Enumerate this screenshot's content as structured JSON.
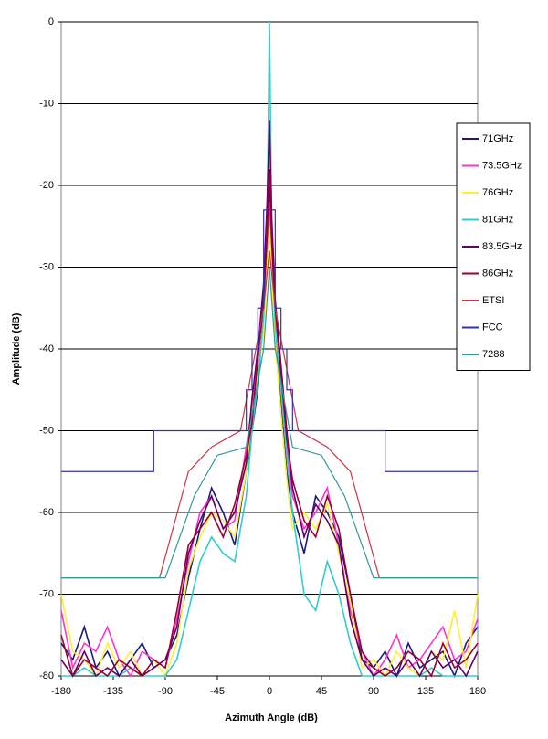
{
  "chart_data": {
    "type": "line",
    "x_label": "Azimuth Angle (dB)",
    "y_label": "Amplitude (dB)",
    "xlim": [
      -180,
      180
    ],
    "xticks": [
      -180,
      -135,
      -90,
      -45,
      0,
      45,
      90,
      135,
      180
    ],
    "ylim": [
      -80,
      0
    ],
    "yticks": [
      0,
      -10,
      -20,
      -30,
      -40,
      -50,
      -60,
      -70,
      -80
    ],
    "grid": true,
    "legend": "right",
    "x": [
      -180,
      -170,
      -160,
      -150,
      -140,
      -130,
      -120,
      -110,
      -100,
      -90,
      -80,
      -70,
      -60,
      -50,
      -40,
      -30,
      -20,
      -15,
      -10,
      -5,
      -2,
      0,
      2,
      5,
      10,
      15,
      20,
      30,
      40,
      50,
      60,
      70,
      80,
      90,
      100,
      110,
      120,
      130,
      140,
      150,
      160,
      170,
      180
    ],
    "series": [
      {
        "name": "71GHz",
        "color": "#1a1a80",
        "values": [
          -76,
          -78,
          -74,
          -79,
          -77,
          -80,
          -78,
          -76,
          -79,
          -78,
          -75,
          -68,
          -62,
          -57,
          -60,
          -64,
          -55,
          -50,
          -45,
          -35,
          -28,
          -20,
          -30,
          -38,
          -47,
          -55,
          -60,
          -65,
          -58,
          -60,
          -63,
          -70,
          -78,
          -79,
          -77,
          -80,
          -76,
          -79,
          -78,
          -77,
          -80,
          -76,
          -74
        ]
      },
      {
        "name": "73.5GHz",
        "color": "#ff33cc",
        "values": [
          -72,
          -79,
          -76,
          -77,
          -74,
          -78,
          -80,
          -77,
          -78,
          -79,
          -73,
          -66,
          -60,
          -58,
          -62,
          -61,
          -52,
          -47,
          -42,
          -33,
          -27,
          -22,
          -28,
          -36,
          -44,
          -52,
          -58,
          -62,
          -60,
          -57,
          -64,
          -72,
          -77,
          -80,
          -78,
          -75,
          -79,
          -78,
          -76,
          -74,
          -78,
          -77,
          -73
        ]
      },
      {
        "name": "76GHz",
        "color": "#ffee33",
        "values": [
          -70,
          -77,
          -78,
          -80,
          -76,
          -79,
          -77,
          -80,
          -78,
          -80,
          -76,
          -67,
          -63,
          -60,
          -61,
          -63,
          -55,
          -48,
          -43,
          -38,
          -30,
          -25,
          -31,
          -39,
          -48,
          -56,
          -62,
          -60,
          -62,
          -59,
          -65,
          -71,
          -79,
          -78,
          -80,
          -77,
          -79,
          -80,
          -77,
          -78,
          -72,
          -79,
          -70
        ]
      },
      {
        "name": "81GHz",
        "color": "#33cccc",
        "values": [
          -80,
          -80,
          -79,
          -80,
          -80,
          -80,
          -79,
          -80,
          -80,
          -80,
          -78,
          -72,
          -66,
          -63,
          -65,
          -66,
          -58,
          -50,
          -44,
          -36,
          -25,
          0,
          -26,
          -37,
          -45,
          -53,
          -60,
          -70,
          -72,
          -66,
          -70,
          -76,
          -80,
          -80,
          -80,
          -80,
          -80,
          -80,
          -79,
          -80,
          -80,
          -80,
          -80
        ]
      },
      {
        "name": "83.5GHz",
        "color": "#660066",
        "values": [
          -78,
          -80,
          -77,
          -80,
          -79,
          -80,
          -78,
          -80,
          -79,
          -78,
          -74,
          -65,
          -61,
          -58,
          -62,
          -60,
          -54,
          -46,
          -40,
          -32,
          -22,
          -12,
          -24,
          -34,
          -42,
          -50,
          -57,
          -63,
          -59,
          -61,
          -64,
          -73,
          -78,
          -80,
          -79,
          -80,
          -78,
          -80,
          -77,
          -79,
          -78,
          -80,
          -77
        ]
      },
      {
        "name": "86GHz",
        "color": "#990033",
        "values": [
          -75,
          -80,
          -78,
          -79,
          -80,
          -78,
          -79,
          -80,
          -78,
          -79,
          -72,
          -64,
          -62,
          -60,
          -63,
          -59,
          -53,
          -49,
          -41,
          -34,
          -26,
          -18,
          -27,
          -35,
          -43,
          -51,
          -56,
          -61,
          -63,
          -58,
          -62,
          -70,
          -77,
          -79,
          -80,
          -79,
          -77,
          -78,
          -80,
          -76,
          -79,
          -78,
          -76
        ]
      },
      {
        "name": "ETSI",
        "color": "#cc3344",
        "x": [
          -180,
          -95,
          -70,
          -50,
          -25,
          -5,
          0,
          5,
          25,
          50,
          70,
          95,
          180
        ],
        "values": [
          -68,
          -68,
          -55,
          -52,
          -50,
          -35,
          -28,
          -35,
          -50,
          -52,
          -55,
          -68,
          -68
        ]
      },
      {
        "name": "FCC",
        "color": "#3333aa",
        "x": [
          -180,
          -100,
          -100,
          -20,
          -20,
          -15,
          -15,
          -10,
          -10,
          -5,
          -5,
          5,
          5,
          10,
          10,
          15,
          15,
          20,
          20,
          100,
          100,
          180
        ],
        "values": [
          -55,
          -55,
          -50,
          -50,
          -45,
          -45,
          -40,
          -40,
          -35,
          -35,
          -23,
          -23,
          -35,
          -35,
          -40,
          -40,
          -45,
          -45,
          -50,
          -50,
          -55,
          -55
        ]
      },
      {
        "name": "7288",
        "color": "#339999",
        "x": [
          -180,
          -90,
          -65,
          -45,
          -20,
          -5,
          0,
          5,
          20,
          45,
          65,
          90,
          180
        ],
        "values": [
          -68,
          -68,
          -58,
          -53,
          -52,
          -40,
          -30,
          -40,
          -52,
          -53,
          -58,
          -68,
          -68
        ]
      }
    ]
  }
}
